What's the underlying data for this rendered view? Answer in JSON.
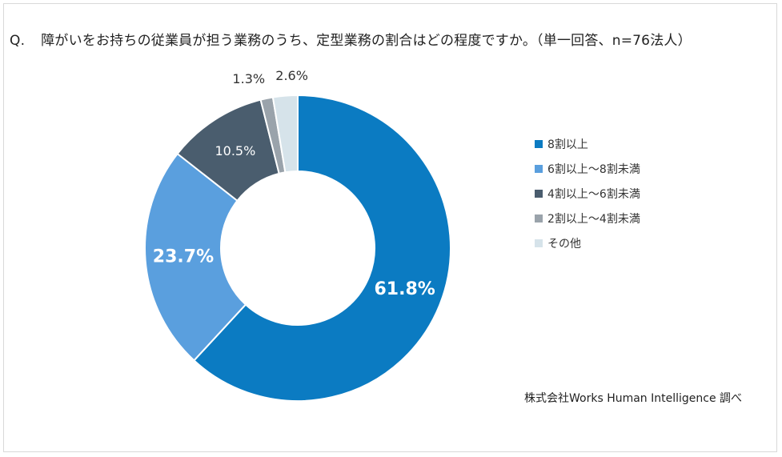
{
  "question": {
    "prefix": "Q.",
    "text": "障がいをお持ちの従業員が担う業務のうち、定型業務の割合はどの程度ですか。（単一回答、n=76法人）"
  },
  "source": "株式会社Works Human Intelligence 調べ",
  "chart_data": {
    "type": "pie",
    "variant": "donut",
    "title": "",
    "categories": [
      "8割以上",
      "6割以上～8割未満",
      "4割以上～6割未満",
      "2割以上～4割未満",
      "その他"
    ],
    "values": [
      61.8,
      23.7,
      10.5,
      1.3,
      2.6
    ],
    "value_labels": [
      "61.8%",
      "23.7%",
      "10.5%",
      "1.3%",
      "2.6%"
    ],
    "colors": [
      "#0b7bc2",
      "#5a9fde",
      "#4a5d6e",
      "#9aa3ab",
      "#d6e3ea"
    ],
    "label_colors": [
      "#ffffff",
      "#ffffff",
      "#ffffff",
      "#333333",
      "#333333"
    ],
    "start": "top, clockwise",
    "legend_position": "right"
  }
}
